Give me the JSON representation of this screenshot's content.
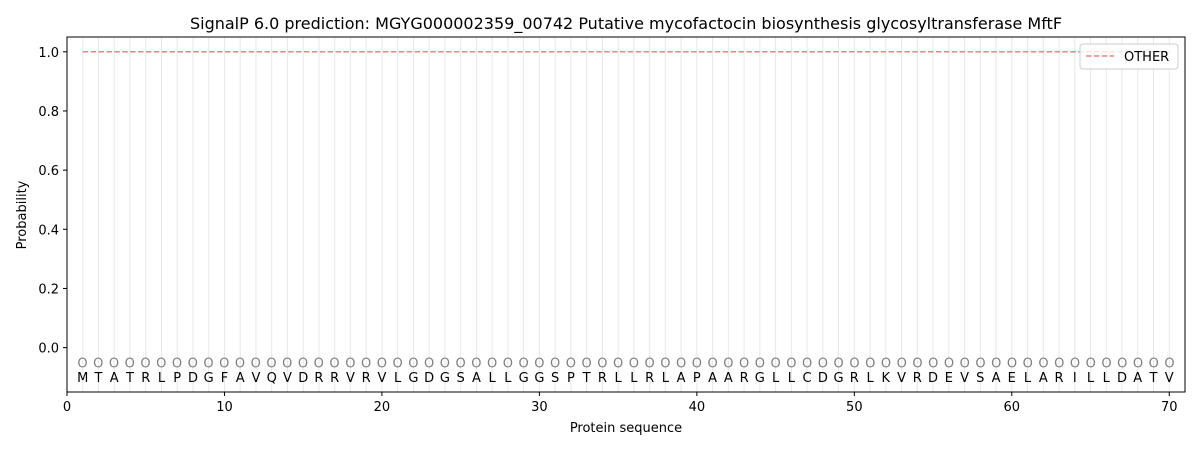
{
  "chart_data": {
    "type": "line",
    "title": "SignalP 6.0 prediction: MGYG000002359_00742 Putative mycofactocin biosynthesis glycosyltransferase MftF",
    "xlabel": "Protein sequence",
    "ylabel": "Probability",
    "xlim": [
      0,
      71
    ],
    "ylim": [
      -0.15,
      1.05
    ],
    "xticks": [
      0,
      10,
      20,
      30,
      40,
      50,
      60,
      70
    ],
    "yticks": [
      0.0,
      0.2,
      0.4,
      0.6,
      0.8,
      1.0
    ],
    "ytick_labels": [
      "0.0",
      "0.2",
      "0.4",
      "0.6",
      "0.8",
      "1.0"
    ],
    "grid": "vertical lines at each residue",
    "legend_position": "top-right",
    "sequence": [
      "M",
      "T",
      "A",
      "T",
      "R",
      "L",
      "P",
      "D",
      "G",
      "F",
      "A",
      "V",
      "Q",
      "V",
      "D",
      "R",
      "R",
      "V",
      "R",
      "V",
      "L",
      "G",
      "D",
      "G",
      "S",
      "A",
      "L",
      "L",
      "G",
      "G",
      "S",
      "P",
      "T",
      "R",
      "L",
      "L",
      "R",
      "L",
      "A",
      "P",
      "A",
      "A",
      "R",
      "G",
      "L",
      "L",
      "C",
      "D",
      "G",
      "R",
      "L",
      "K",
      "V",
      "R",
      "D",
      "E",
      "V",
      "S",
      "A",
      "E",
      "L",
      "A",
      "R",
      "I",
      "L",
      "L",
      "D",
      "A",
      "T",
      "V"
    ],
    "predicted_labels": "OOOOOOOOOOOOOOOOOOOOOOOOOOOOOOOOOOOOOOOOOOOOOOOOOOOOOOOOOOOOOOOOOOOOOO",
    "series": [
      {
        "name": "OTHER",
        "color": "#f08080",
        "style": "dashed",
        "x_start": 1,
        "x_end": 70,
        "value": 1.0
      }
    ]
  }
}
